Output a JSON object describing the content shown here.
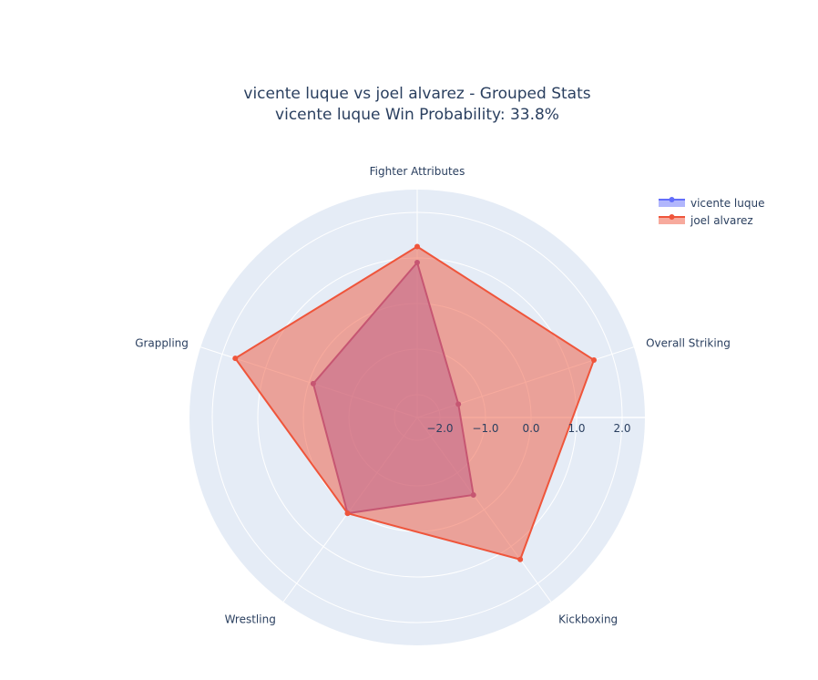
{
  "chart_data": {
    "type": "radar",
    "title": "vicente luque vs joel alvarez - Grouped Stats",
    "subtitle": "vicente luque Win Probability: 33.8%",
    "categories": [
      "Fighter Attributes",
      "Overall Striking",
      "Kickboxing",
      "Wrestling",
      "Grappling"
    ],
    "radial_range": [
      -2.5,
      2.5
    ],
    "radial_ticks": [
      -2.0,
      -1.0,
      0.0,
      1.0,
      2.0
    ],
    "radial_tick_labels": [
      "−2.0",
      "−1.0",
      "0.0",
      "1.0",
      "2.0"
    ],
    "legend_position": "top-right",
    "series": [
      {
        "name": "vicente luque",
        "values": [
          0.9,
          -1.55,
          -0.4,
          0.1,
          -0.1
        ],
        "line_color": "#9d57a8",
        "marker_color": "#9d57a8",
        "fill_color": "#8c6bd8",
        "legend_color": "#636efa"
      },
      {
        "name": "joel alvarez",
        "values": [
          1.25,
          1.58,
          1.35,
          0.1,
          1.7
        ],
        "line_color": "#ef553b",
        "marker_color": "#ef553b",
        "fill_color": "#ef553b",
        "legend_color": "#ef553b"
      }
    ]
  }
}
